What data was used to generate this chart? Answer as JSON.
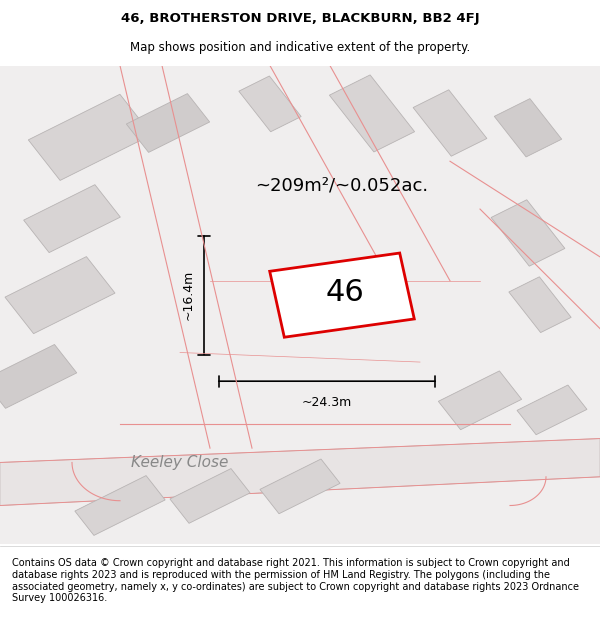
{
  "title_line1": "46, BROTHERSTON DRIVE, BLACKBURN, BB2 4FJ",
  "title_line2": "Map shows position and indicative extent of the property.",
  "footer_text": "Contains OS data © Crown copyright and database right 2021. This information is subject to Crown copyright and database rights 2023 and is reproduced with the permission of HM Land Registry. The polygons (including the associated geometry, namely x, y co-ordinates) are subject to Crown copyright and database rights 2023 Ordnance Survey 100026316.",
  "area_label": "~209m²/~0.052ac.",
  "number_label": "46",
  "width_label": "~24.3m",
  "height_label": "~16.4m",
  "street_label": "Keeley Close",
  "bg_color": "#f0eeee",
  "map_bg": "#f5f3f3",
  "road_fill": "#e8e4e4",
  "building_fill": "#d8d4d4",
  "building_fill_light": "#e0dcdc",
  "plot_outline_color": "#dd0000",
  "plot_fill_color": "#ffffff",
  "pink_line_color": "#e89090",
  "road_outline_color": "#c8c0c0",
  "dim_line_color": "#000000",
  "title_fontsize": 9.5,
  "subtitle_fontsize": 8.5,
  "footer_fontsize": 7.0,
  "label_fontsize": 12,
  "number_fontsize": 22,
  "street_fontsize": 11
}
